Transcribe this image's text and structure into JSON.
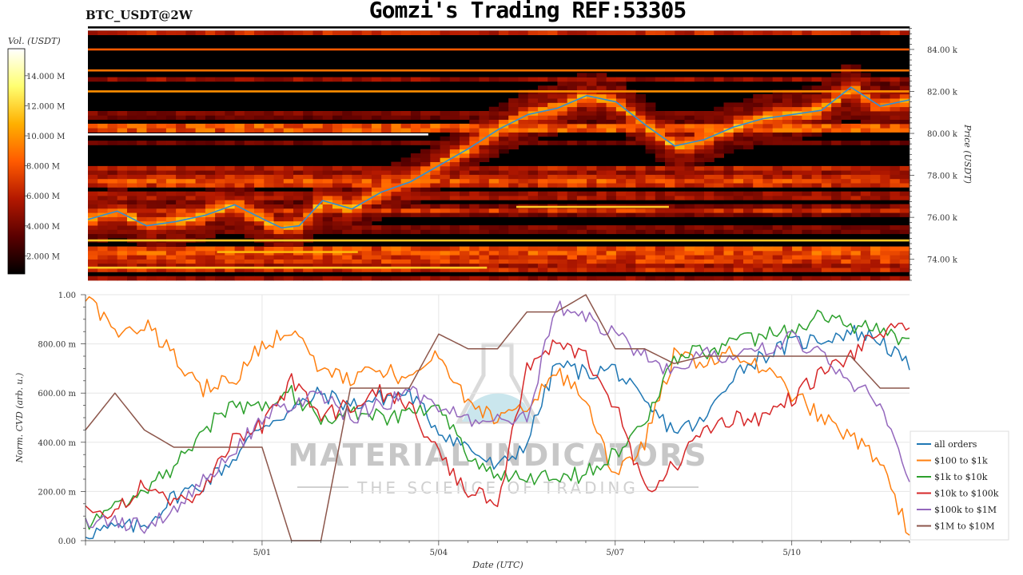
{
  "header": {
    "symbol": "BTC_USDT@2W",
    "title": "Gomzi's Trading REF:53305"
  },
  "watermark": {
    "line1": "MATERIAL INDICATORS",
    "line2": "THE SCIENCE OF TRADING"
  },
  "chart_data": [
    {
      "type": "heatmap",
      "name": "orderbook-heatmap",
      "colorbar": {
        "label": "Vol. (USDT)",
        "ticks": [
          "2.000 M",
          "4.000 M",
          "6.000 M",
          "8.000 M",
          "10.000 M",
          "12.000 M",
          "14.000 M"
        ],
        "tick_values": [
          2,
          4,
          6,
          8,
          10,
          12,
          14
        ],
        "range": [
          0.8,
          15.8
        ],
        "colormap": [
          "#000000",
          "#5a0000",
          "#b31800",
          "#ff5a00",
          "#ffb000",
          "#ffff70",
          "#ffffff"
        ]
      },
      "ylabel": "Price (USDT)",
      "ylim": [
        73,
        85.1
      ],
      "y_ticks": [
        74,
        76,
        78,
        80,
        82,
        84
      ],
      "y_tick_labels": [
        "74.00 k",
        "76.00 k",
        "78.00 k",
        "80.00 k",
        "82.00 k",
        "84.00 k"
      ],
      "xlim": [
        0,
        14
      ],
      "price_line": {
        "name": "price",
        "color": "#2f8fd8",
        "x": [
          0,
          0.5,
          1,
          1.5,
          2,
          2.5,
          3,
          3.3,
          3.6,
          4,
          4.5,
          5,
          5.5,
          6,
          6.5,
          7,
          7.5,
          8,
          8.5,
          9,
          9.5,
          10,
          10.5,
          11,
          11.5,
          12,
          12.5,
          13,
          13.5,
          14
        ],
        "y": [
          75.9,
          76.3,
          75.6,
          75.8,
          76.1,
          76.6,
          75.9,
          75.5,
          75.6,
          76.8,
          76.4,
          77.2,
          77.7,
          78.5,
          79.3,
          80.2,
          80.9,
          81.2,
          81.8,
          81.5,
          80.4,
          79.4,
          79.7,
          80.3,
          80.7,
          80.9,
          81.1,
          82.2,
          81.3,
          81.6
        ]
      },
      "walls": [
        {
          "price": 84.95,
          "x": [
            0,
            14
          ],
          "level": 1.0
        },
        {
          "price": 79.95,
          "x": [
            0,
            5.8
          ],
          "level": 1.0
        },
        {
          "price": 74.9,
          "x": [
            0,
            14
          ],
          "level": 0.72
        },
        {
          "price": 73.6,
          "x": [
            0,
            6.8
          ],
          "level": 0.72
        },
        {
          "price": 74.35,
          "x": [
            2.2,
            4.6
          ],
          "level": 0.68
        },
        {
          "price": 76.5,
          "x": [
            7.3,
            9.9
          ],
          "level": 0.72
        },
        {
          "price": 82.0,
          "x": [
            0,
            14
          ],
          "level": 0.6
        },
        {
          "price": 83.0,
          "x": [
            0,
            14
          ],
          "level": 0.55
        },
        {
          "price": 84.0,
          "x": [
            0,
            14
          ],
          "level": 0.5
        }
      ]
    },
    {
      "type": "line",
      "name": "normalized-cvd",
      "xlabel": "Date (UTC)",
      "ylabel": "Norm. CVD (arb. u.)",
      "xlim": [
        0,
        14
      ],
      "x_ticks": [
        3,
        6,
        9,
        12
      ],
      "x_tick_labels": [
        "5/01",
        "5/04",
        "5/07",
        "5/10"
      ],
      "ylim": [
        0,
        1
      ],
      "y_ticks": [
        0,
        0.2,
        0.4,
        0.6,
        0.8,
        1.0
      ],
      "y_tick_labels": [
        "0.00",
        "200.00 m",
        "400.00 m",
        "600.00 m",
        "800.00 m",
        "1.00"
      ],
      "grid": true,
      "legend": "right",
      "x": [
        0,
        0.5,
        1,
        1.5,
        2,
        2.5,
        3,
        3.5,
        4,
        4.5,
        5,
        5.5,
        6,
        6.5,
        7,
        7.5,
        8,
        8.5,
        9,
        9.5,
        10,
        10.5,
        11,
        11.5,
        12,
        12.5,
        13,
        13.5,
        14
      ],
      "series": [
        {
          "name": "all orders",
          "color": "#1f77b4",
          "values": [
            0.03,
            0.05,
            0.06,
            0.18,
            0.23,
            0.33,
            0.47,
            0.53,
            0.6,
            0.55,
            0.58,
            0.6,
            0.45,
            0.38,
            0.29,
            0.4,
            0.72,
            0.68,
            0.7,
            0.55,
            0.45,
            0.48,
            0.68,
            0.75,
            0.8,
            0.82,
            0.85,
            0.82,
            0.7
          ]
        },
        {
          "name": "$100 to $1k",
          "color": "#ff7f0e",
          "values": [
            1.0,
            0.85,
            0.88,
            0.75,
            0.62,
            0.65,
            0.8,
            0.85,
            0.7,
            0.65,
            0.7,
            0.65,
            0.75,
            0.55,
            0.5,
            0.55,
            0.68,
            0.58,
            0.25,
            0.4,
            0.75,
            0.73,
            0.76,
            0.7,
            0.6,
            0.5,
            0.42,
            0.33,
            0.02
          ]
        },
        {
          "name": "$1k to $10k",
          "color": "#2ca02c",
          "values": [
            0.06,
            0.15,
            0.2,
            0.3,
            0.45,
            0.55,
            0.55,
            0.6,
            0.5,
            0.52,
            0.5,
            0.52,
            0.55,
            0.35,
            0.25,
            0.25,
            0.26,
            0.27,
            0.35,
            0.48,
            0.75,
            0.77,
            0.8,
            0.83,
            0.85,
            0.93,
            0.88,
            0.85,
            0.8
          ]
        },
        {
          "name": "$10k to $100k",
          "color": "#d62728",
          "values": [
            0.12,
            0.1,
            0.25,
            0.15,
            0.2,
            0.4,
            0.47,
            0.65,
            0.5,
            0.55,
            0.6,
            0.55,
            0.35,
            0.2,
            0.15,
            0.7,
            0.8,
            0.75,
            0.55,
            0.2,
            0.3,
            0.45,
            0.5,
            0.5,
            0.58,
            0.68,
            0.75,
            0.85,
            0.85
          ]
        },
        {
          "name": "$100k to $1M",
          "color": "#9467bd",
          "values": [
            0.08,
            0.08,
            0.05,
            0.12,
            0.25,
            0.35,
            0.5,
            0.55,
            0.6,
            0.5,
            0.55,
            0.6,
            0.55,
            0.48,
            0.5,
            0.5,
            0.95,
            0.9,
            0.85,
            0.75,
            0.68,
            0.76,
            0.75,
            0.78,
            0.82,
            0.77,
            0.65,
            0.55,
            0.27
          ]
        },
        {
          "name": "$1M to $10M",
          "color": "#8c564b",
          "values": [
            0.45,
            0.6,
            0.45,
            0.38,
            0.38,
            0.38,
            0.38,
            0.0,
            0.0,
            0.62,
            0.62,
            0.62,
            0.84,
            0.78,
            0.78,
            0.93,
            0.93,
            1.0,
            0.78,
            0.78,
            0.72,
            0.75,
            0.75,
            0.75,
            0.75,
            0.75,
            0.75,
            0.62,
            0.62
          ]
        }
      ]
    }
  ]
}
